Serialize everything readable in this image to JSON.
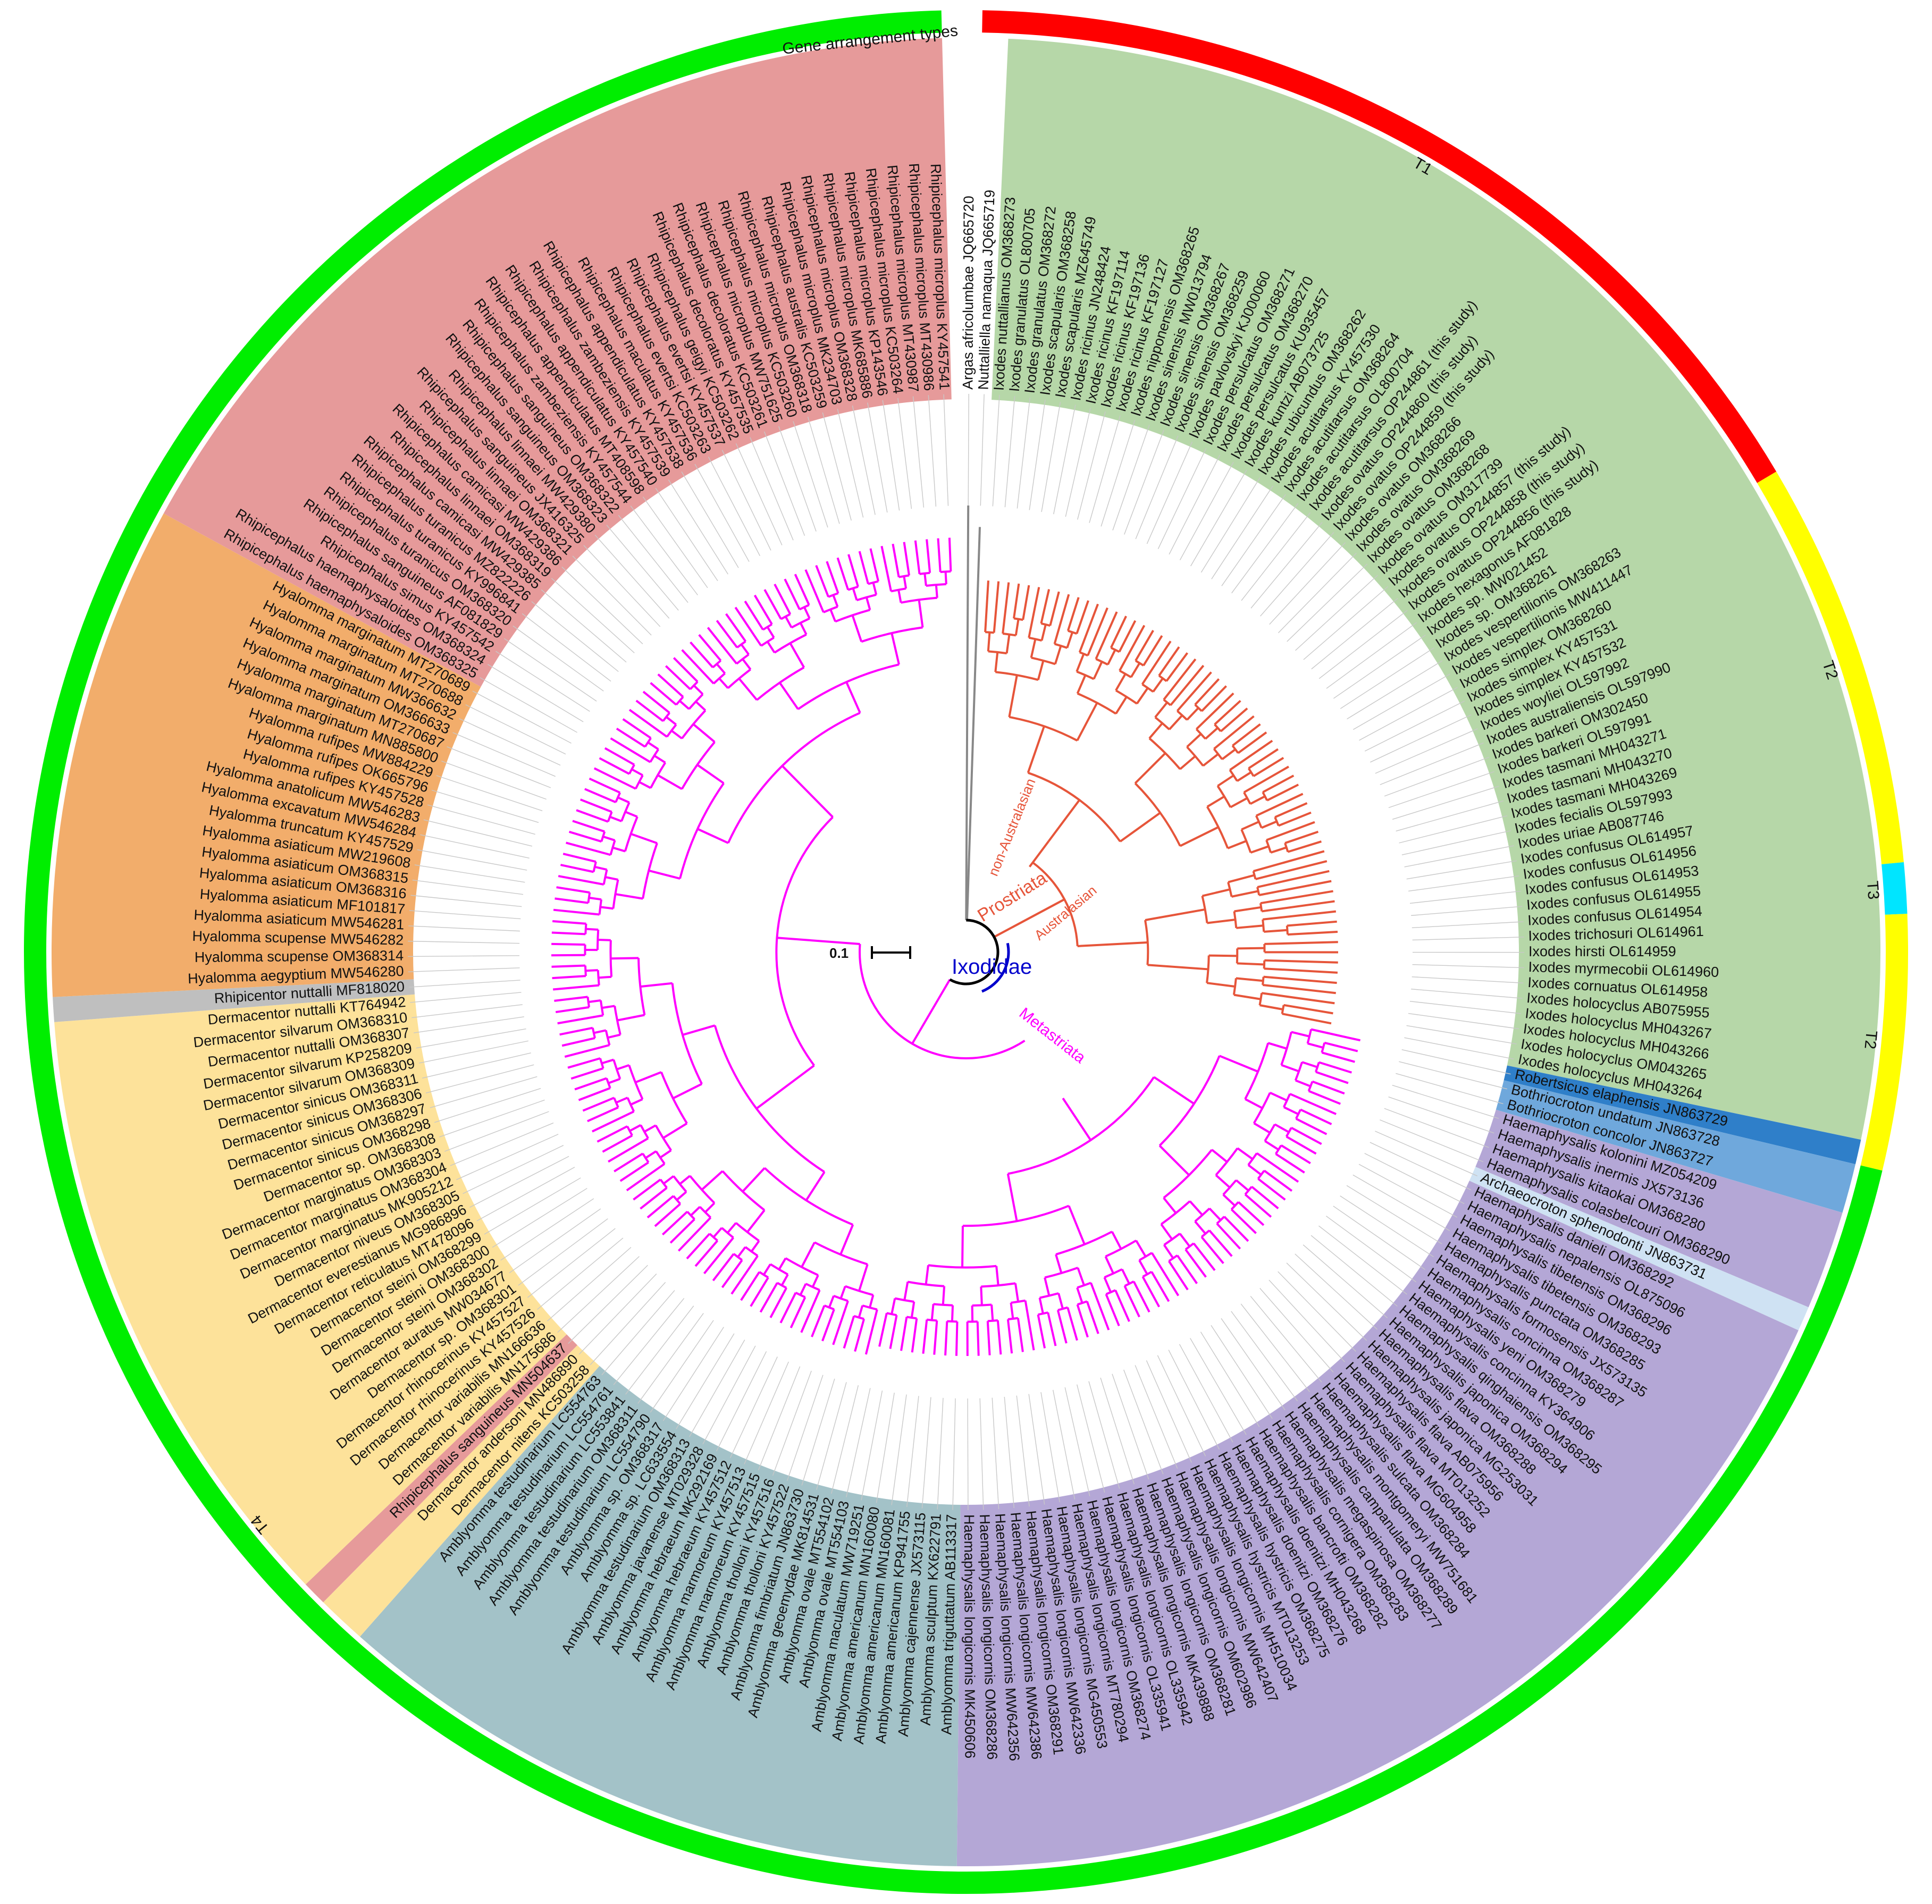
{
  "title_ring": "Gene arrangement types",
  "scale_label": "0.1",
  "colors": {
    "ixodes": "#b6d7a8",
    "rhipicephalus": "#e69a9a",
    "hyalomma": "#f2ad6b",
    "rhipicentor": "#bfbfbf",
    "dermacentor": "#fde29a",
    "amblyomma": "#a3c2c8",
    "haemaphysalis": "#b4a7d6",
    "robertsicus": "#2f7fc9",
    "bothriocroton": "#6fa8dc",
    "archaeocroton": "#cfe2f3",
    "outgroup": "#ffffff",
    "prostriata_branch": "#e6553a",
    "metastriata_branch": "#ff00ff",
    "ixodidae_label": "#0000cc",
    "T1": "#ff0000",
    "T2": "#ffff00",
    "T3": "#00e5ff",
    "T4": "#00ee00"
  },
  "clade_labels": {
    "ixodidae": "Ixodidae",
    "prostriata": "Prostriata",
    "metastriata": "Metastriata",
    "australasian": "Australasian",
    "non_australasian": "non-Australasian"
  },
  "gene_types": [
    {
      "label": "T1",
      "color_key": "T1"
    },
    {
      "label": "T2",
      "color_key": "T2"
    },
    {
      "label": "T3",
      "color_key": "T3"
    },
    {
      "label": "T2",
      "color_key": "T2"
    },
    {
      "label": "T4",
      "color_key": "T4"
    }
  ],
  "groups": [
    {
      "key": "outgroup",
      "taxa": [
        "Argas africolumbae JQ665720",
        "Nuttalliella namaqua JQ665719"
      ]
    },
    {
      "key": "ixodes",
      "taxa": [
        "Ixodes nuttallianus OM368273",
        "Ixodes granulatus OL800705",
        "Ixodes granulatus OM368272",
        "Ixodes scapularis OM368258",
        "Ixodes scapularis MZ645749",
        "Ixodes ricinus JN248424",
        "Ixodes ricinus KF197114",
        "Ixodes ricinus KF197136",
        "Ixodes ricinus KF197127",
        "Ixodes nipponensis OM368265",
        "Ixodes sinensis MW013794",
        "Ixodes sinensis OM368267",
        "Ixodes sinensis OM368259",
        "Ixodes pavlovskyi KJ000060",
        "Ixodes persulcatus OM368271",
        "Ixodes persulcatus OM368270",
        "Ixodes persulcatus KU935457",
        "Ixodes kuntzi AB073725",
        "Ixodes rubicundus OM368262",
        "Ixodes acutitarsus KY457530",
        "Ixodes acutitarsus OM368264",
        "Ixodes acutitarsus OL800704",
        "Ixodes acutitarsus OP244861 (this study)",
        "Ixodes ovatus OP244860 (this study)",
        "Ixodes ovatus OP244859 (this study)",
        "Ixodes ovatus OM368266",
        "Ixodes ovatus OM368269",
        "Ixodes ovatus OM368268",
        "Ixodes ovatus OM317739",
        "Ixodes ovatus OP244857 (this study)",
        "Ixodes ovatus OP244858 (this study)",
        "Ixodes ovatus OP244856 (this study)",
        "Ixodes hexagonus AF081828",
        "Ixodes sp. MW021452",
        "Ixodes sp. OM368261",
        "Ixodes vespertilionis OM368263",
        "Ixodes vespertilionis MW411447",
        "Ixodes simplex OM368260",
        "Ixodes simplex KY457531",
        "Ixodes simplex KY457532",
        "Ixodes woyliei OL597992",
        "Ixodes australiensis OL597990",
        "Ixodes barkeri OM302450",
        "Ixodes barkeri OL597991",
        "Ixodes tasmani MH043271",
        "Ixodes tasmani MH043270",
        "Ixodes tasmani MH043269",
        "Ixodes fecialis OL597993",
        "Ixodes uriae AB087746",
        "Ixodes confusus OL614957",
        "Ixodes confusus OL614956",
        "Ixodes confusus OL614953",
        "Ixodes confusus OL614955",
        "Ixodes confusus OL614954",
        "Ixodes trichosuri OL614961",
        "Ixodes hirsti OL614959",
        "Ixodes myrmecobii OL614960",
        "Ixodes cornuatus OL614958",
        "Ixodes holocyclus AB075955",
        "Ixodes holocyclus MH043267",
        "Ixodes holocyclus MH043266",
        "Ixodes holocyclus OM043265",
        "Ixodes holocyclus MH043264"
      ]
    },
    {
      "key": "robertsicus",
      "taxa": [
        "Robertsicus elaphensis JN863729"
      ]
    },
    {
      "key": "bothriocroton",
      "taxa": [
        "Bothriocroton undatum JN863728",
        "Bothriocroton concolor JN863727"
      ]
    },
    {
      "key": "haemaphysalis",
      "taxa": [
        "Haemaphysalis kolonini MZ054209",
        "Haemaphysalis inermis JX573136",
        "Haemaphysalis kitaokai OM368280",
        "Haemaphysalis colasbelcouri OM368290"
      ]
    },
    {
      "key": "archaeocroton",
      "taxa": [
        "Archaeocroton sphenodonti JN863731"
      ]
    },
    {
      "key": "haemaphysalis",
      "taxa": [
        "Haemaphysalis danieli OM368292",
        "Haemaphysalis nepalensis OL875096",
        "Haemaphysalis tibetensis OM368296",
        "Haemaphysalis tibetensis OM368293",
        "Haemaphysalis punctata OM368285",
        "Haemaphysalis formosensis JX573135",
        "Haemaphysalis concinna OM368287",
        "Haemaphysalis yeni OM368279",
        "Haemaphysalis concinna KY364906",
        "Haemaphysalis qinghaiensis OM368295",
        "Haemaphysalis japonica OM368294",
        "Haemaphysalis flava OM368288",
        "Haemaphysalis japonica MG253031",
        "Haemaphysalis flava AB075956",
        "Haemaphysalis flava MT013252",
        "Haemaphysalis flava MG604958",
        "Haemaphysalis sulcata OM368284",
        "Haemaphysalis montgomeryi MW751681",
        "Haemaphysalis campanulata OM368289",
        "Haemaphysalis megaspinosa OM368277",
        "Haemaphysalis cornigera OM368283",
        "Haemaphysalis bancrofti OM368282",
        "Haemaphysalis doenitzi MH043268",
        "Haemaphysalis doenitzi OM368276",
        "Haemaphysalis hystricis OM368275",
        "Haemaphysalis hystricis MT013253",
        "Haemaphysalis longicornis MH510034",
        "Haemaphysalis longicornis MW642407",
        "Haemaphysalis longicornis OM602986",
        "Haemaphysalis longicornis OM368281",
        "Haemaphysalis longicornis MK439888",
        "Haemaphysalis longicornis OL335942",
        "Haemaphysalis longicornis OL335941",
        "Haemaphysalis longicornis OM368274",
        "Haemaphysalis longicornis MT780294",
        "Haemaphysalis longicornis MG450553",
        "Haemaphysalis longicornis MW642336",
        "Haemaphysalis longicornis OM368291",
        "Haemaphysalis longicornis MW642386",
        "Haemaphysalis longicornis MW642356",
        "Haemaphysalis longicornis OM368286",
        "Haemaphysalis longicornis MK450606"
      ]
    },
    {
      "key": "amblyomma",
      "taxa": [
        "Amblyomma triguttatum AB113317",
        "Amblyomma sculptum KX622791",
        "Amblyomma cajennense JX573115",
        "Amblyomma americanum KP941755",
        "Amblyomma americanum MN160081",
        "Amblyomma americanum MN160080",
        "Amblyomma maculatum MW719251",
        "Amblyomma ovale MT554103",
        "Amblyomma ovale MT554102",
        "Amblyomma geoemydae MK814531",
        "Amblyomma fimbriatum JN863730",
        "Amblyomma tholloni KY457522",
        "Amblyomma tholloni KY457516",
        "Amblyomma marmoreum KY457515",
        "Amblyomma marmoreum KY457513",
        "Amblyomma hebraeum KY457512",
        "Amblyomma hebraeum MK292169",
        "Amblyomma javanense MT029328",
        "Amblyomma testudinarium OM368313",
        "Amblyomma sp. LC633554",
        "Amblyomma sp. OM368317",
        "Amblyomma testudinarium LC554790",
        "Amblyomma testudinarium OM368311",
        "Amblyomma testudinarium LC553841",
        "Amblyomma testudinarium LC554761",
        "Amblyomma testudinarium LC554763"
      ]
    },
    {
      "key": "dermacentor",
      "taxa": [
        "Dermacentor nitens KC503258",
        "Dermacentor andersoni MN486890"
      ]
    },
    {
      "key": "rhipicephalus",
      "taxa": [
        "Rhipicephalus sanguineus MN504637"
      ]
    },
    {
      "key": "dermacentor",
      "taxa": [
        "Dermacentor variabilis MN175686",
        "Dermacentor variabilis MN166636",
        "Dermacentor rhinocerinus KY457526",
        "Dermacentor rhinocerinus KY457527",
        "Dermacentor sp. OM368301",
        "Dermacentor auratus MW034677",
        "Dermacentor steini OM368302",
        "Dermacentor steini OM368300",
        "Dermacentor steini OM368299",
        "Dermacentor reticulatus MT478096",
        "Dermacentor everestianus MG986896",
        "Dermacentor niveus OM368305",
        "Dermacentor marginatus MK905212",
        "Dermacentor marginatus OM368304",
        "Dermacentor marginatus OM368303",
        "Dermacentor sp. OM368308",
        "Dermacentor sinicus OM368298",
        "Dermacentor sinicus OM368297",
        "Dermacentor sinicus OM368306",
        "Dermacentor sinicus OM368311",
        "Dermacentor silvarum OM368309",
        "Dermacentor silvarum KP258209",
        "Dermacentor nuttalli OM368307",
        "Dermacentor silvarum OM368310",
        "Dermacentor nuttalli KT764942"
      ]
    },
    {
      "key": "rhipicentor",
      "taxa": [
        "Rhipicentor nuttalli MF818020"
      ]
    },
    {
      "key": "hyalomma",
      "taxa": [
        "Hyalomma aegyptium MW546280",
        "Hyalomma scupense OM368314",
        "Hyalomma scupense MW546282",
        "Hyalomma asiaticum MW546281",
        "Hyalomma asiaticum MF101817",
        "Hyalomma asiaticum OM368316",
        "Hyalomma asiaticum OM368315",
        "Hyalomma asiaticum MW219608",
        "Hyalomma truncatum KY457529",
        "Hyalomma excavatum MW546284",
        "Hyalomma anatolicum MW546283",
        "Hyalomma rufipes KY457528",
        "Hyalomma rufipes OK665796",
        "Hyalomma rufipes MW884229",
        "Hyalomma marginatum MN885800",
        "Hyalomma marginatum MT270687",
        "Hyalomma marginatum OM366633",
        "Hyalomma marginatum MW366632",
        "Hyalomma marginatum MT270688",
        "Hyalomma marginatum MT270689"
      ]
    },
    {
      "key": "rhipicephalus",
      "taxa": [
        "Rhipicephalus haemaphysaloides OM368325",
        "Rhipicephalus haemaphysaloides OM368324",
        "Rhipicephalus simus KY457542",
        "Rhipicephalus sanguineus AF081829",
        "Rhipicephalus turanicus OM368320",
        "Rhipicephalus turanicus KY996841",
        "Rhipicephalus turanicus MZ822226",
        "Rhipicephalus camicasi MW429385",
        "Rhipicephalus linnaei OM368319",
        "Rhipicephalus camicasi MW429386",
        "Rhipicephalus linnaei OM368321",
        "Rhipicephalus sanguineus JX416325",
        "Rhipicephalus linnaei MW429380",
        "Rhipicephalus sanguineus OM368323",
        "Rhipicephalus sanguineus OM368322",
        "Rhipicephalus zambeziensis KY457544",
        "Rhipicephalus appendiculatus MT408598",
        "Rhipicephalus appendiculatus KY457540",
        "Rhipicephalus zambeziensis KY457539",
        "Rhipicephalus appendiculatus KY457538",
        "Rhipicephalus maculatus KY457536",
        "Rhipicephalus evertsi KC503263",
        "Rhipicephalus evertsi KY457537",
        "Rhipicephalus geigyi KC503262",
        "Rhipicephalus decoloratus KY457535",
        "Rhipicephalus decoloratus KC503261",
        "Rhipicephalus microplus MW751625",
        "Rhipicephalus microplus KC503260",
        "Rhipicephalus microplus OM368318",
        "Rhipicephalus australis KC503259",
        "Rhipicephalus microplus MK234703",
        "Rhipicephalus microplus OM368328",
        "Rhipicephalus microplus MK685886",
        "Rhipicephalus microplus KP143546",
        "Rhipicephalus microplus KC503264",
        "Rhipicephalus microplus MT430987",
        "Rhipicephalus microplus MT430986",
        "Rhipicephalus microplus KY457541"
      ]
    }
  ]
}
